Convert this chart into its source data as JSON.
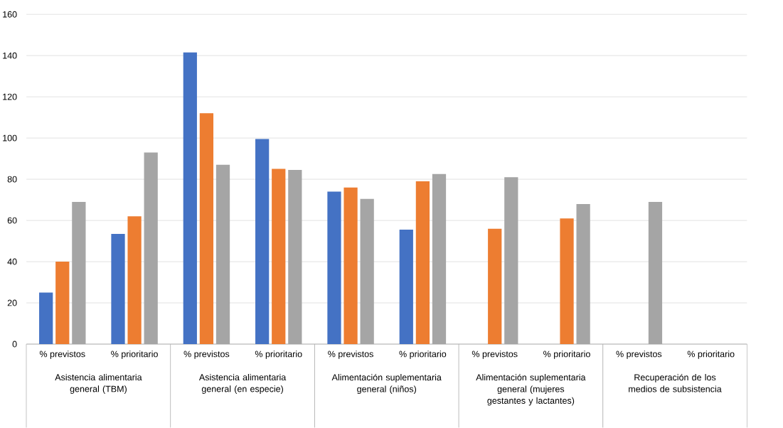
{
  "chart_data": {
    "type": "bar",
    "categories": [
      "% previstos",
      "% prioritario",
      "% previstos",
      "% prioritario",
      "% previstos",
      "% prioritario",
      "% previstos",
      "% prioritario",
      "% previstos",
      "% prioritario"
    ],
    "series": [
      {
        "color": "#4472c4",
        "values": [
          25,
          53.5,
          141.5,
          99.5,
          74,
          55.5,
          null,
          null,
          null,
          null
        ]
      },
      {
        "color": "#ed7d31",
        "values": [
          40,
          62,
          112,
          85,
          76,
          79,
          56,
          61,
          null,
          null
        ]
      },
      {
        "color": "#a5a5a5",
        "values": [
          69,
          93,
          87,
          84.5,
          70.5,
          82.5,
          81,
          68,
          69,
          null
        ]
      }
    ],
    "ylim": [
      0,
      160
    ],
    "yticks": [
      0,
      20,
      40,
      60,
      80,
      100,
      120,
      140,
      160
    ],
    "grid": "y",
    "annotations": [
      "Asistencia alimentaria general (TBM)",
      "Asistencia alimentaria general (en especie)",
      "Alimentación suplementaria general (niños)",
      "Alimentación suplementaria general (mujeres gestantes y lactantes)",
      "Recuperación de los medios de subsistencia"
    ]
  }
}
